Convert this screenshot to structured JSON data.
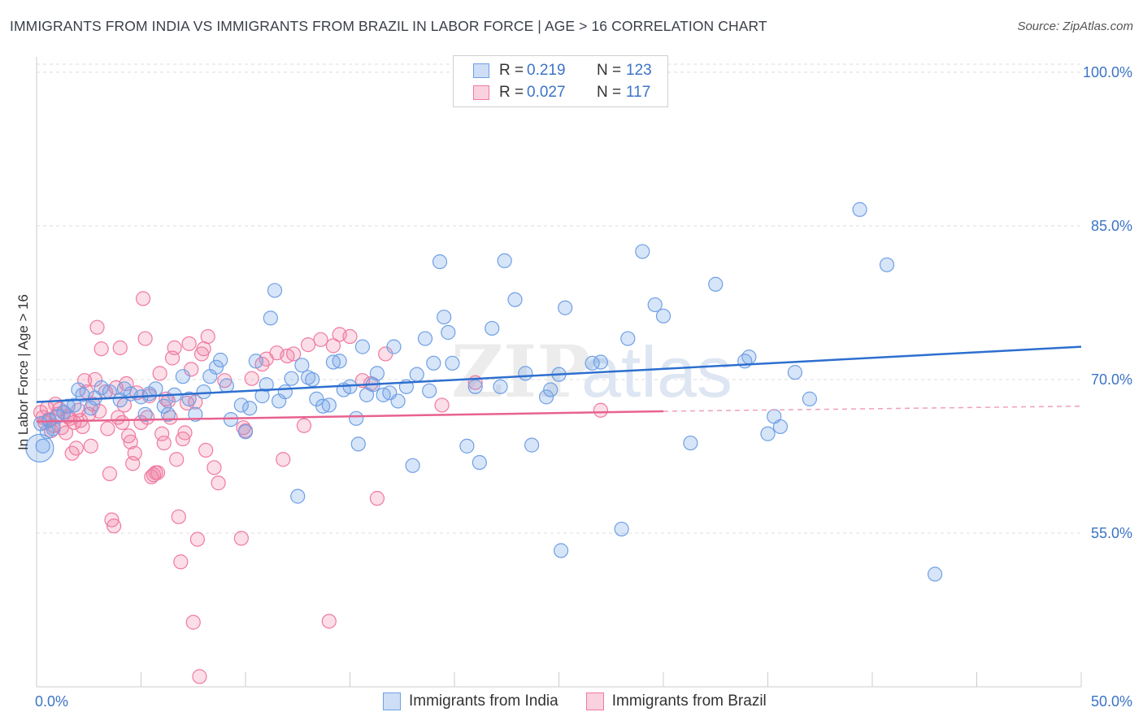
{
  "title": "IMMIGRANTS FROM INDIA VS IMMIGRANTS FROM BRAZIL IN LABOR FORCE | AGE > 16 CORRELATION CHART",
  "source": "Source: ZipAtlas.com",
  "watermark": "ZIPatlas",
  "legend": {
    "rows": [
      {
        "r_label": "R =",
        "r_value": "0.219",
        "n_label": "N =",
        "n_value": "123",
        "color": "#6fa0e6"
      },
      {
        "r_label": "R =",
        "r_value": "0.027",
        "n_label": "N =",
        "n_value": "117",
        "color": "#f07aa0"
      }
    ]
  },
  "bottom_legend": [
    {
      "label": "Immigrants from India",
      "color": "#6fa0e6"
    },
    {
      "label": "Immigrants from Brazil",
      "color": "#f07aa0"
    }
  ],
  "chart_data": {
    "type": "scatter",
    "title": "IMMIGRANTS FROM INDIA VS IMMIGRANTS FROM BRAZIL IN LABOR FORCE | AGE > 16 CORRELATION CHART",
    "ylabel": "In Labor Force | Age > 16",
    "xlabel": "",
    "x_tick_labels": [
      "0.0%",
      "50.0%"
    ],
    "y_tick_labels": [
      "55.0%",
      "70.0%",
      "85.0%",
      "100.0%"
    ],
    "y_ticks": [
      55,
      70,
      85,
      100
    ],
    "xlim": [
      0,
      50
    ],
    "ylim": [
      40,
      101.5
    ],
    "grid": true,
    "legend_position": "top-center",
    "series": [
      {
        "name": "Immigrants from India",
        "color": "#6fa0e6",
        "trend": {
          "x0": 0,
          "y0": 67.8,
          "x1": 50,
          "y1": 73.2
        },
        "points": [
          [
            0.2,
            65.7
          ],
          [
            0.3,
            63.5
          ],
          [
            0.5,
            64.9
          ],
          [
            0.6,
            66.0
          ],
          [
            0.8,
            65.2
          ],
          [
            1.0,
            66.4
          ],
          [
            1.3,
            66.8
          ],
          [
            1.5,
            67.4
          ],
          [
            1.8,
            67.5
          ],
          [
            2.0,
            69.0
          ],
          [
            2.2,
            68.5
          ],
          [
            2.6,
            67.2
          ],
          [
            2.8,
            68.2
          ],
          [
            3.1,
            69.2
          ],
          [
            3.5,
            68.8
          ],
          [
            4.0,
            68.0
          ],
          [
            4.2,
            69.1
          ],
          [
            4.5,
            68.6
          ],
          [
            5.0,
            68.3
          ],
          [
            5.2,
            66.6
          ],
          [
            5.4,
            68.6
          ],
          [
            5.7,
            69.1
          ],
          [
            6.1,
            67.4
          ],
          [
            6.3,
            66.6
          ],
          [
            6.6,
            68.5
          ],
          [
            7.0,
            70.3
          ],
          [
            7.3,
            68.1
          ],
          [
            7.6,
            66.6
          ],
          [
            8.0,
            68.8
          ],
          [
            8.3,
            70.3
          ],
          [
            8.6,
            71.2
          ],
          [
            8.8,
            71.9
          ],
          [
            9.1,
            69.4
          ],
          [
            9.3,
            66.1
          ],
          [
            9.8,
            67.5
          ],
          [
            10.0,
            64.9
          ],
          [
            10.2,
            67.2
          ],
          [
            10.5,
            71.8
          ],
          [
            10.8,
            68.4
          ],
          [
            11.0,
            69.5
          ],
          [
            11.2,
            76.0
          ],
          [
            11.4,
            78.7
          ],
          [
            11.6,
            67.9
          ],
          [
            11.9,
            68.8
          ],
          [
            12.2,
            70.1
          ],
          [
            12.5,
            58.6
          ],
          [
            12.7,
            71.4
          ],
          [
            13.0,
            70.2
          ],
          [
            13.2,
            70.0
          ],
          [
            13.4,
            68.1
          ],
          [
            13.7,
            67.4
          ],
          [
            14.0,
            67.5
          ],
          [
            14.2,
            71.7
          ],
          [
            14.5,
            71.8
          ],
          [
            14.7,
            69.0
          ],
          [
            15.0,
            69.3
          ],
          [
            15.3,
            66.2
          ],
          [
            15.4,
            63.7
          ],
          [
            15.6,
            73.2
          ],
          [
            15.8,
            68.5
          ],
          [
            16.1,
            69.5
          ],
          [
            16.3,
            70.6
          ],
          [
            16.6,
            68.5
          ],
          [
            16.9,
            68.7
          ],
          [
            17.1,
            73.2
          ],
          [
            17.3,
            67.9
          ],
          [
            17.7,
            69.3
          ],
          [
            18.0,
            61.6
          ],
          [
            18.2,
            70.5
          ],
          [
            18.6,
            74.0
          ],
          [
            18.8,
            68.9
          ],
          [
            19.0,
            71.6
          ],
          [
            19.3,
            81.5
          ],
          [
            19.5,
            76.1
          ],
          [
            19.7,
            74.6
          ],
          [
            19.9,
            71.6
          ],
          [
            20.6,
            63.5
          ],
          [
            21.0,
            69.3
          ],
          [
            21.2,
            61.9
          ],
          [
            21.8,
            75.0
          ],
          [
            22.2,
            69.3
          ],
          [
            22.4,
            81.6
          ],
          [
            22.9,
            77.8
          ],
          [
            23.4,
            70.6
          ],
          [
            23.7,
            63.6
          ],
          [
            24.4,
            68.3
          ],
          [
            24.6,
            69.0
          ],
          [
            25.0,
            70.5
          ],
          [
            25.1,
            53.3
          ],
          [
            25.3,
            77.0
          ],
          [
            26.6,
            71.6
          ],
          [
            27.0,
            71.7
          ],
          [
            28.0,
            55.4
          ],
          [
            28.3,
            74.0
          ],
          [
            29.0,
            82.5
          ],
          [
            29.6,
            77.3
          ],
          [
            30.0,
            76.2
          ],
          [
            31.3,
            63.8
          ],
          [
            32.5,
            79.3
          ],
          [
            33.9,
            71.8
          ],
          [
            34.1,
            72.2
          ],
          [
            35.0,
            64.7
          ],
          [
            35.3,
            66.4
          ],
          [
            35.6,
            65.4
          ],
          [
            36.3,
            70.7
          ],
          [
            37.0,
            68.1
          ],
          [
            39.4,
            86.6
          ],
          [
            40.7,
            81.2
          ],
          [
            43.0,
            51.0
          ],
          [
            0.15,
            63.3
          ]
        ]
      },
      {
        "name": "Immigrants from Brazil",
        "color": "#f07aa0",
        "trend": {
          "x0": 0,
          "y0": 65.9,
          "x1": 30,
          "y1": 66.9,
          "dashed_to_x": 50,
          "dashed_to_y": 67.4
        },
        "points": [
          [
            0.2,
            66.8
          ],
          [
            0.3,
            66.3
          ],
          [
            0.4,
            65.8
          ],
          [
            0.5,
            67.2
          ],
          [
            0.6,
            66.1
          ],
          [
            0.8,
            65.5
          ],
          [
            0.9,
            67.6
          ],
          [
            1.0,
            66.6
          ],
          [
            1.1,
            67.1
          ],
          [
            1.2,
            65.3
          ],
          [
            1.3,
            66.8
          ],
          [
            1.4,
            64.8
          ],
          [
            1.6,
            66.2
          ],
          [
            1.7,
            62.8
          ],
          [
            1.8,
            65.8
          ],
          [
            1.9,
            63.3
          ],
          [
            2.0,
            67.0
          ],
          [
            2.2,
            65.4
          ],
          [
            2.3,
            69.9
          ],
          [
            2.4,
            68.8
          ],
          [
            2.5,
            66.6
          ],
          [
            2.6,
            63.5
          ],
          [
            2.7,
            67.6
          ],
          [
            2.8,
            70.0
          ],
          [
            2.9,
            75.1
          ],
          [
            3.0,
            66.9
          ],
          [
            3.1,
            73.0
          ],
          [
            3.3,
            68.8
          ],
          [
            3.4,
            65.2
          ],
          [
            3.5,
            60.8
          ],
          [
            3.6,
            56.3
          ],
          [
            3.7,
            55.7
          ],
          [
            3.8,
            69.2
          ],
          [
            3.9,
            66.3
          ],
          [
            4.0,
            73.1
          ],
          [
            4.1,
            65.8
          ],
          [
            4.2,
            67.5
          ],
          [
            4.3,
            69.6
          ],
          [
            4.4,
            64.5
          ],
          [
            4.5,
            63.9
          ],
          [
            4.6,
            61.8
          ],
          [
            4.7,
            62.8
          ],
          [
            4.8,
            68.7
          ],
          [
            5.0,
            65.8
          ],
          [
            5.1,
            77.9
          ],
          [
            5.2,
            74.0
          ],
          [
            5.3,
            66.3
          ],
          [
            5.4,
            68.4
          ],
          [
            5.5,
            60.5
          ],
          [
            5.6,
            60.7
          ],
          [
            5.7,
            60.9
          ],
          [
            5.8,
            60.9
          ],
          [
            5.9,
            70.6
          ],
          [
            6.0,
            64.7
          ],
          [
            6.1,
            63.8
          ],
          [
            6.2,
            68.1
          ],
          [
            6.3,
            67.9
          ],
          [
            6.4,
            66.3
          ],
          [
            6.5,
            72.1
          ],
          [
            6.6,
            73.1
          ],
          [
            6.7,
            62.2
          ],
          [
            6.8,
            56.6
          ],
          [
            6.9,
            52.2
          ],
          [
            7.0,
            64.2
          ],
          [
            7.1,
            64.8
          ],
          [
            7.2,
            67.7
          ],
          [
            7.3,
            73.5
          ],
          [
            7.4,
            71.0
          ],
          [
            7.5,
            46.3
          ],
          [
            7.6,
            67.8
          ],
          [
            7.7,
            54.4
          ],
          [
            7.8,
            41.0
          ],
          [
            7.9,
            72.5
          ],
          [
            8.0,
            73.0
          ],
          [
            8.1,
            63.1
          ],
          [
            8.2,
            74.2
          ],
          [
            8.5,
            61.4
          ],
          [
            8.7,
            59.9
          ],
          [
            9.0,
            69.9
          ],
          [
            9.8,
            54.5
          ],
          [
            9.9,
            65.3
          ],
          [
            10.0,
            65.0
          ],
          [
            10.3,
            70.1
          ],
          [
            10.8,
            71.5
          ],
          [
            11.0,
            72.0
          ],
          [
            11.5,
            72.6
          ],
          [
            11.8,
            62.2
          ],
          [
            12.0,
            72.3
          ],
          [
            12.3,
            72.5
          ],
          [
            12.8,
            65.5
          ],
          [
            13.0,
            73.4
          ],
          [
            13.6,
            73.9
          ],
          [
            14.0,
            46.4
          ],
          [
            14.2,
            73.3
          ],
          [
            14.5,
            74.4
          ],
          [
            15.0,
            74.2
          ],
          [
            15.6,
            69.9
          ],
          [
            16.0,
            69.6
          ],
          [
            16.3,
            58.4
          ],
          [
            16.7,
            72.5
          ],
          [
            19.4,
            67.5
          ],
          [
            21.0,
            69.7
          ],
          [
            27.0,
            67.0
          ],
          [
            1.5,
            66.4
          ],
          [
            2.1,
            66.0
          ],
          [
            0.7,
            65.0
          ]
        ]
      }
    ]
  }
}
